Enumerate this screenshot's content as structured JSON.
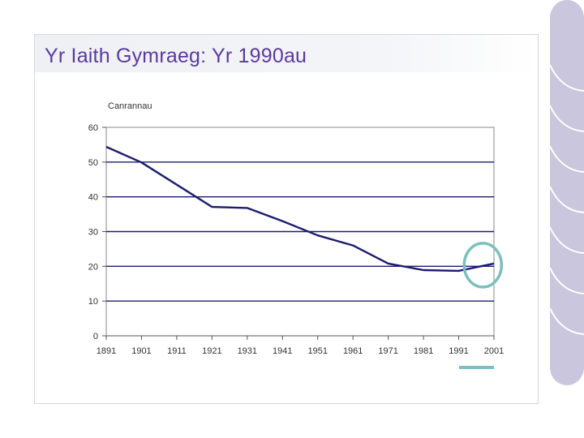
{
  "slide": {
    "title": "Yr Iaith Gymraeg: Yr 1990au"
  },
  "colors": {
    "title": "#5b3aa0",
    "line": "#1c1c6e",
    "highlight": "#7dbfbf",
    "deco": "#c9c6de"
  },
  "chart_data": {
    "type": "line",
    "title": "",
    "ylabel": "Canrannau",
    "xlabel": "",
    "ylim": [
      0,
      60
    ],
    "yticks": [
      "0",
      "10",
      "20",
      "30",
      "40",
      "50",
      "60"
    ],
    "x": [
      "1891",
      "1901",
      "1911",
      "1921",
      "1931",
      "1941",
      "1951",
      "1961",
      "1971",
      "1981",
      "1991",
      "2001"
    ],
    "series": [
      {
        "name": "",
        "values": [
          54.4,
          49.9,
          43.5,
          37.1,
          36.8,
          33.0,
          28.9,
          26.0,
          20.8,
          18.9,
          18.7,
          20.8
        ]
      }
    ],
    "grid": {
      "horizontal": true,
      "vertical": false
    },
    "highlight": "2001"
  }
}
